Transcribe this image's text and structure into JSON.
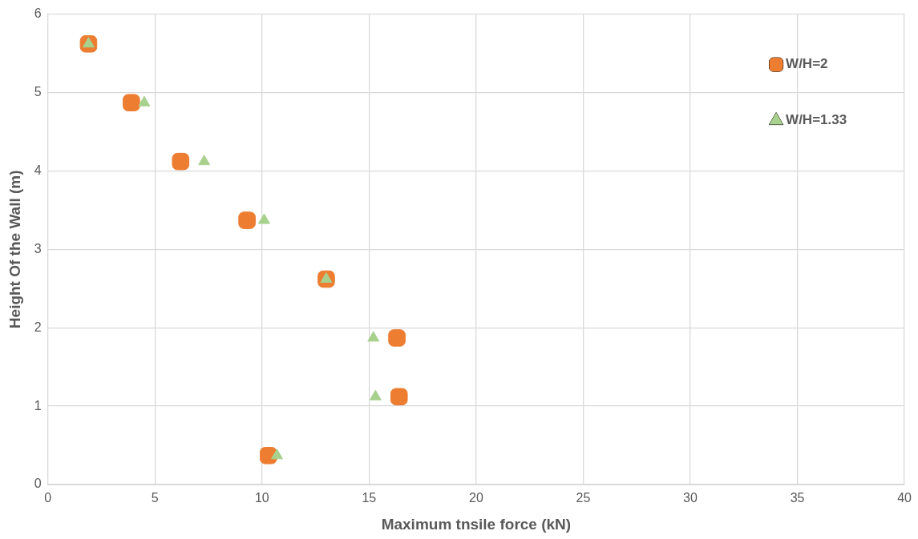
{
  "chart_data": {
    "type": "scatter",
    "xlabel": "Maximum tnsile force (kN)",
    "ylabel": "Height Of the Wall (m)",
    "xlim": [
      0,
      40
    ],
    "xticks": [
      0,
      5,
      10,
      15,
      20,
      25,
      30,
      35,
      40
    ],
    "ylim": [
      0,
      6
    ],
    "yticks": [
      0,
      1,
      2,
      3,
      4,
      5,
      6
    ],
    "grid": true,
    "legend": "top right",
    "series": [
      {
        "name": "W/H=2",
        "color": "#ed7d31",
        "marker": "square",
        "x": [
          1.9,
          3.9,
          6.2,
          9.3,
          13.0,
          16.3,
          16.4,
          10.3
        ],
        "values": [
          5.62,
          4.87,
          4.12,
          3.37,
          2.62,
          1.87,
          1.12,
          0.37
        ]
      },
      {
        "name": "W/H=1.33",
        "color": "#a9d18e",
        "marker": "triangle",
        "x": [
          1.9,
          4.5,
          7.3,
          10.1,
          13.0,
          15.2,
          15.3,
          10.7
        ],
        "values": [
          5.62,
          4.87,
          4.12,
          3.37,
          2.62,
          1.87,
          1.12,
          0.37
        ]
      }
    ]
  }
}
